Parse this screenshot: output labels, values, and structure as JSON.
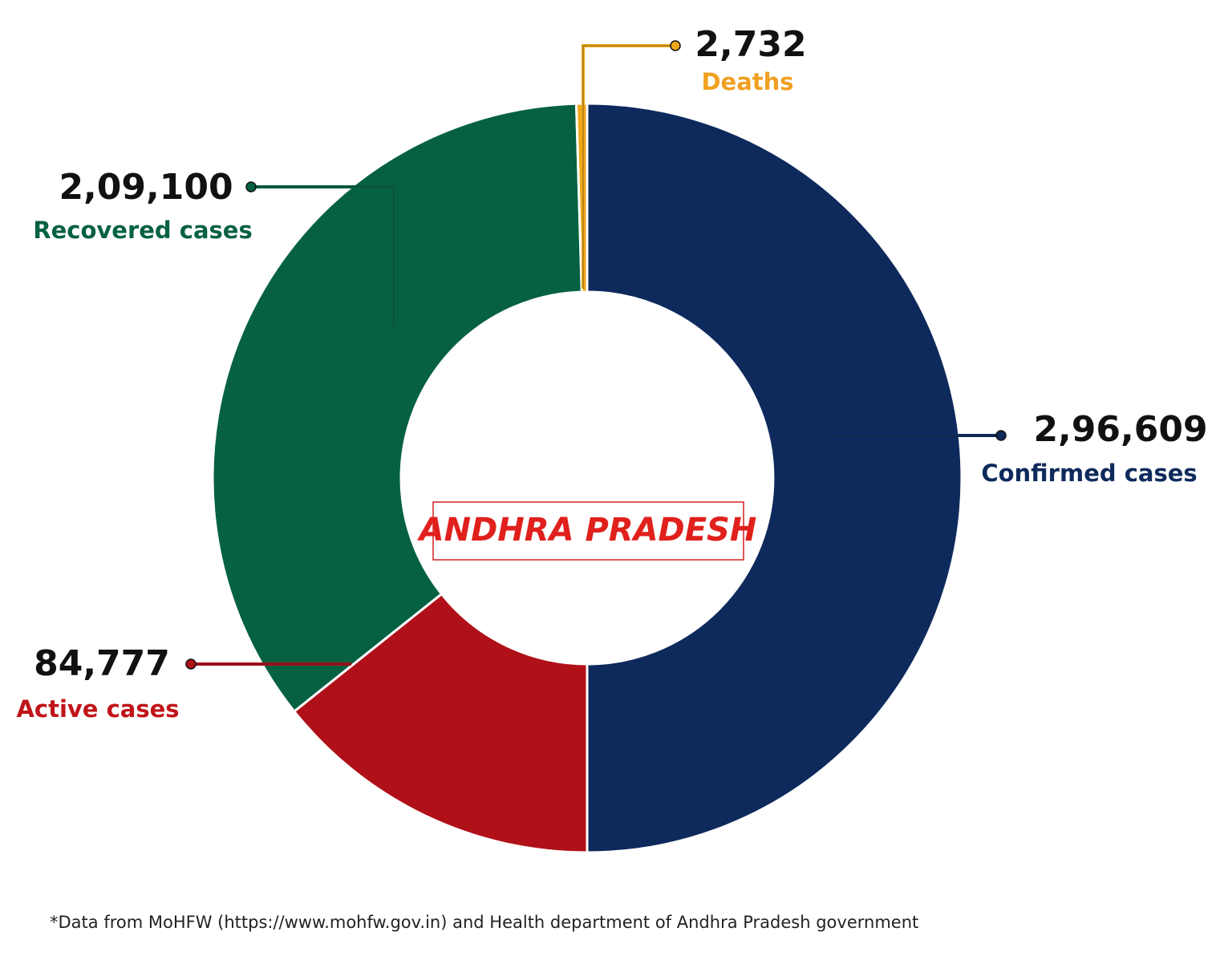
{
  "chart_data": {
    "type": "donut",
    "categories": [
      "Confirmed cases",
      "Active cases",
      "Recovered cases",
      "Deaths"
    ],
    "values": [
      296609,
      84777,
      209100,
      2732
    ],
    "value_labels": [
      "2,96,609",
      "84,777",
      "2,09,100",
      "2,732"
    ],
    "colors": [
      "#0e2a5c",
      "#b01018",
      "#066142",
      "#f0a818"
    ],
    "label_colors": [
      "#0e2a5c",
      "#c0141a",
      "#066142",
      "#f0a020"
    ],
    "center_label": "ANDHRA PRADESH",
    "note": "*Data from MoHFW (https://www.mohfw.gov.in) and Health department of Andhra Pradesh government"
  }
}
